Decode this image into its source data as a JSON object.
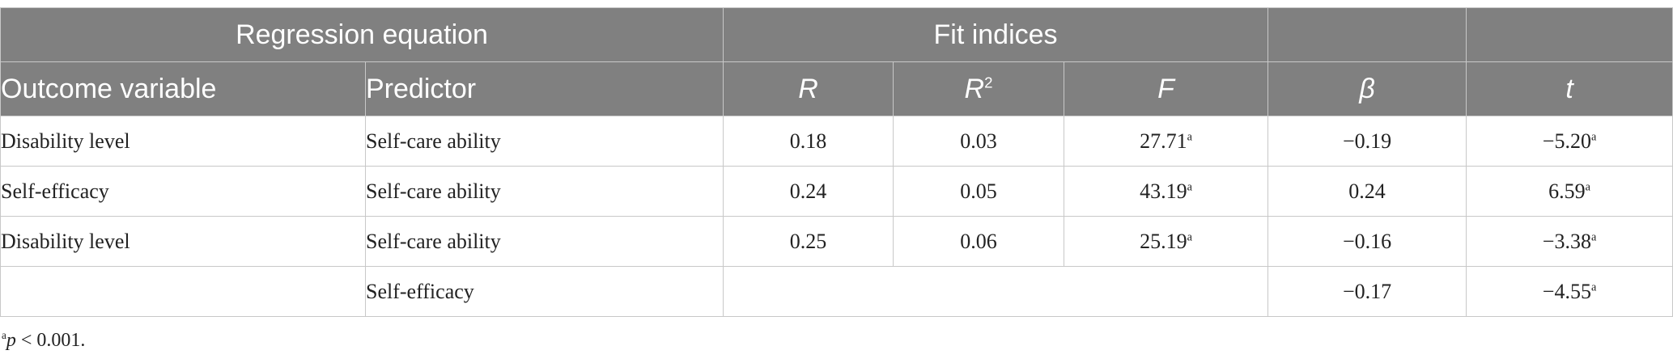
{
  "table": {
    "group_headers": [
      "Regression equation",
      "Fit indices",
      "",
      ""
    ],
    "columns": [
      "Outcome variable",
      "Predictor",
      "R",
      "R",
      "2",
      "F",
      "β",
      "t"
    ],
    "rows": [
      {
        "outcome": "Disability level",
        "predictor": "Self-care ability",
        "R": "0.18",
        "R2": "0.03",
        "F": "27.71",
        "F_sup": "a",
        "beta": "−0.19",
        "t": "−5.20",
        "t_sup": "a"
      },
      {
        "outcome": "Self-efficacy",
        "predictor": "Self-care ability",
        "R": "0.24",
        "R2": "0.05",
        "F": "43.19",
        "F_sup": "a",
        "beta": "0.24",
        "t": "6.59",
        "t_sup": "a"
      },
      {
        "outcome": "Disability level",
        "predictor": "Self-care ability",
        "R": "0.25",
        "R2": "0.06",
        "F": "25.19",
        "F_sup": "a",
        "beta": "−0.16",
        "t": "−3.38",
        "t_sup": "a"
      },
      {
        "outcome": "",
        "predictor": "Self-efficacy",
        "beta": "−0.17",
        "t": "−4.55",
        "t_sup": "a"
      }
    ]
  },
  "footnote": {
    "marker": "a",
    "text_p": "p",
    "text_rest": " < 0.001."
  }
}
